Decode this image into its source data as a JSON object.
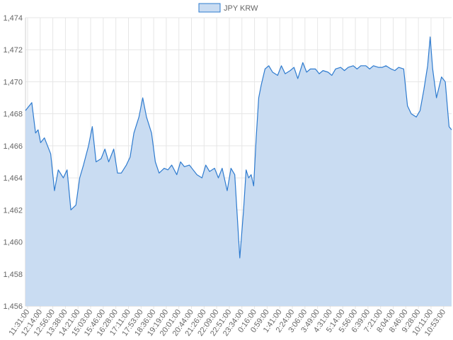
{
  "chart_data": {
    "type": "area",
    "legend": {
      "position": "top-center"
    },
    "grid": true,
    "ylim": [
      1456,
      1474
    ],
    "y_ticks": [
      1456,
      1458,
      1460,
      1462,
      1464,
      1466,
      1468,
      1470,
      1472,
      1474
    ],
    "y_tick_labels": [
      "1,456",
      "1,458",
      "1,460",
      "1,462",
      "1,464",
      "1,466",
      "1,468",
      "1,470",
      "1,472",
      "1,474"
    ],
    "x_tick_labels": [
      "11:31:00",
      "12:14:00",
      "12:56:00",
      "13:38:00",
      "14:21:00",
      "15:03:00",
      "15:46:00",
      "16:28:00",
      "17:11:00",
      "17:53:00",
      "18:36:00",
      "19:19:00",
      "20:01:00",
      "20:44:00",
      "21:26:00",
      "22:09:00",
      "22:51:00",
      "23:34:00",
      "0:16:00",
      "0:59:00",
      "1:41:00",
      "2:24:00",
      "3:06:00",
      "3:49:00",
      "4:31:00",
      "5:14:00",
      "5:56:00",
      "6:39:00",
      "7:21:00",
      "8:04:00",
      "8:46:00",
      "9:28:00",
      "10:11:00",
      "10:53:00"
    ],
    "series": [
      {
        "name": "JPY KRW",
        "color": "#2e7bcf",
        "fill": "#c9dcf2",
        "x": [
          0,
          0.5,
          0.8,
          1,
          1.2,
          1.5,
          2,
          2.3,
          2.6,
          3,
          3.3,
          3.6,
          4,
          4.3,
          4.6,
          5,
          5.3,
          5.6,
          6,
          6.3,
          6.6,
          7,
          7.3,
          7.6,
          8,
          8.3,
          8.6,
          9,
          9.3,
          9.6,
          10,
          10.3,
          10.6,
          11,
          11.3,
          11.6,
          12,
          12.3,
          12.6,
          13,
          13.3,
          13.6,
          14,
          14.3,
          14.6,
          15,
          15.3,
          15.6,
          16,
          16.3,
          16.6,
          17,
          17.3,
          17.5,
          17.7,
          17.9,
          18.1,
          18.3,
          18.5,
          18.7,
          19,
          19.3,
          19.6,
          20,
          20.3,
          20.6,
          21,
          21.3,
          21.6,
          22,
          22.3,
          22.6,
          23,
          23.3,
          23.6,
          24,
          24.3,
          24.6,
          25,
          25.3,
          25.6,
          26,
          26.3,
          26.6,
          27,
          27.3,
          27.6,
          28,
          28.3,
          28.6,
          29,
          29.3,
          29.6,
          30,
          30.3,
          30.6,
          31,
          31.3,
          31.6,
          31.9,
          32.1,
          32.3,
          32.6,
          33,
          33.3,
          33.6,
          33.8
        ],
        "values": [
          1468.2,
          1468.7,
          1466.8,
          1467.0,
          1466.2,
          1466.5,
          1465.5,
          1463.2,
          1464.5,
          1464.0,
          1464.5,
          1462.0,
          1462.3,
          1464.0,
          1464.8,
          1466.0,
          1467.2,
          1465.0,
          1465.2,
          1465.8,
          1465.0,
          1465.8,
          1464.3,
          1464.3,
          1464.8,
          1465.3,
          1466.8,
          1467.8,
          1469.0,
          1467.8,
          1466.8,
          1465.0,
          1464.3,
          1464.6,
          1464.5,
          1464.8,
          1464.2,
          1465.0,
          1464.7,
          1464.8,
          1464.5,
          1464.2,
          1464.0,
          1464.8,
          1464.4,
          1464.6,
          1464.0,
          1464.6,
          1463.2,
          1464.6,
          1464.2,
          1459.0,
          1462.0,
          1464.5,
          1464.0,
          1464.2,
          1463.5,
          1466.5,
          1469.0,
          1469.8,
          1470.8,
          1471.0,
          1470.6,
          1470.4,
          1471.0,
          1470.5,
          1470.7,
          1470.9,
          1470.2,
          1471.2,
          1470.6,
          1470.8,
          1470.8,
          1470.5,
          1470.7,
          1470.6,
          1470.4,
          1470.8,
          1470.9,
          1470.7,
          1470.9,
          1471.0,
          1470.8,
          1471.0,
          1471.0,
          1470.8,
          1471.0,
          1470.9,
          1470.9,
          1471.0,
          1470.8,
          1470.7,
          1470.9,
          1470.8,
          1468.5,
          1468.0,
          1467.8,
          1468.2,
          1469.5,
          1471.0,
          1472.8,
          1470.8,
          1469.0,
          1470.3,
          1470.0,
          1467.2,
          1467.0
        ]
      }
    ]
  }
}
